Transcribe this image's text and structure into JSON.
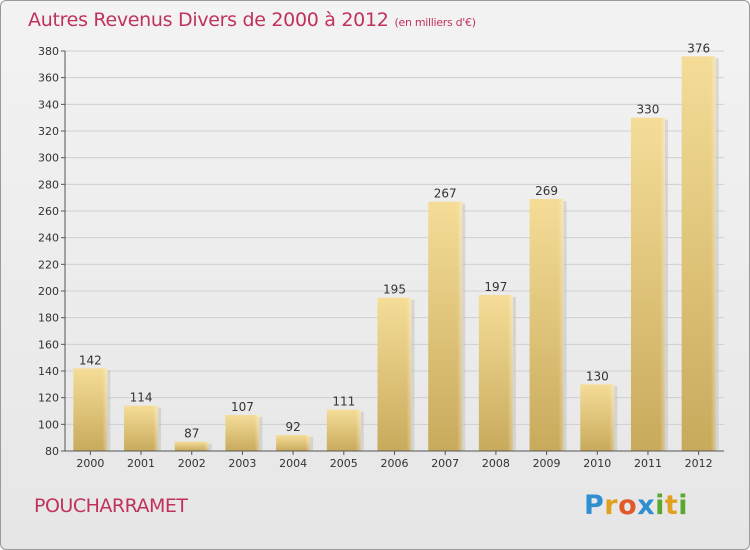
{
  "header": {
    "title": "Autres Revenus Divers de 2000 à 2012",
    "unit": "(en milliers d'€)"
  },
  "footer": {
    "city": "POUCHARRAMET",
    "brand": [
      "P",
      "r",
      "o",
      "x",
      "i",
      "t",
      "i"
    ],
    "brand_colors": [
      "#2f8fd0",
      "#e0a020",
      "#e05a2a",
      "#2f8fd0",
      "#5aa830",
      "#e0a020",
      "#5aa830"
    ]
  },
  "colors": {
    "accent": "#c0325a",
    "bar_light": "#f5dd98",
    "bar_dark": "#c8aa5c"
  },
  "chart_data": {
    "type": "bar",
    "title": "Autres Revenus Divers de 2000 à 2012",
    "xlabel": "",
    "ylabel": "",
    "categories": [
      "2000",
      "2001",
      "2002",
      "2003",
      "2004",
      "2005",
      "2006",
      "2007",
      "2008",
      "2009",
      "2010",
      "2011",
      "2012"
    ],
    "values": [
      142,
      114,
      87,
      107,
      92,
      111,
      195,
      267,
      197,
      269,
      130,
      330,
      376
    ],
    "ylim": [
      80,
      380
    ],
    "yticks": [
      80,
      100,
      120,
      140,
      160,
      180,
      200,
      220,
      240,
      260,
      280,
      300,
      320,
      340,
      360,
      380
    ],
    "grid": true,
    "legend": "none"
  }
}
